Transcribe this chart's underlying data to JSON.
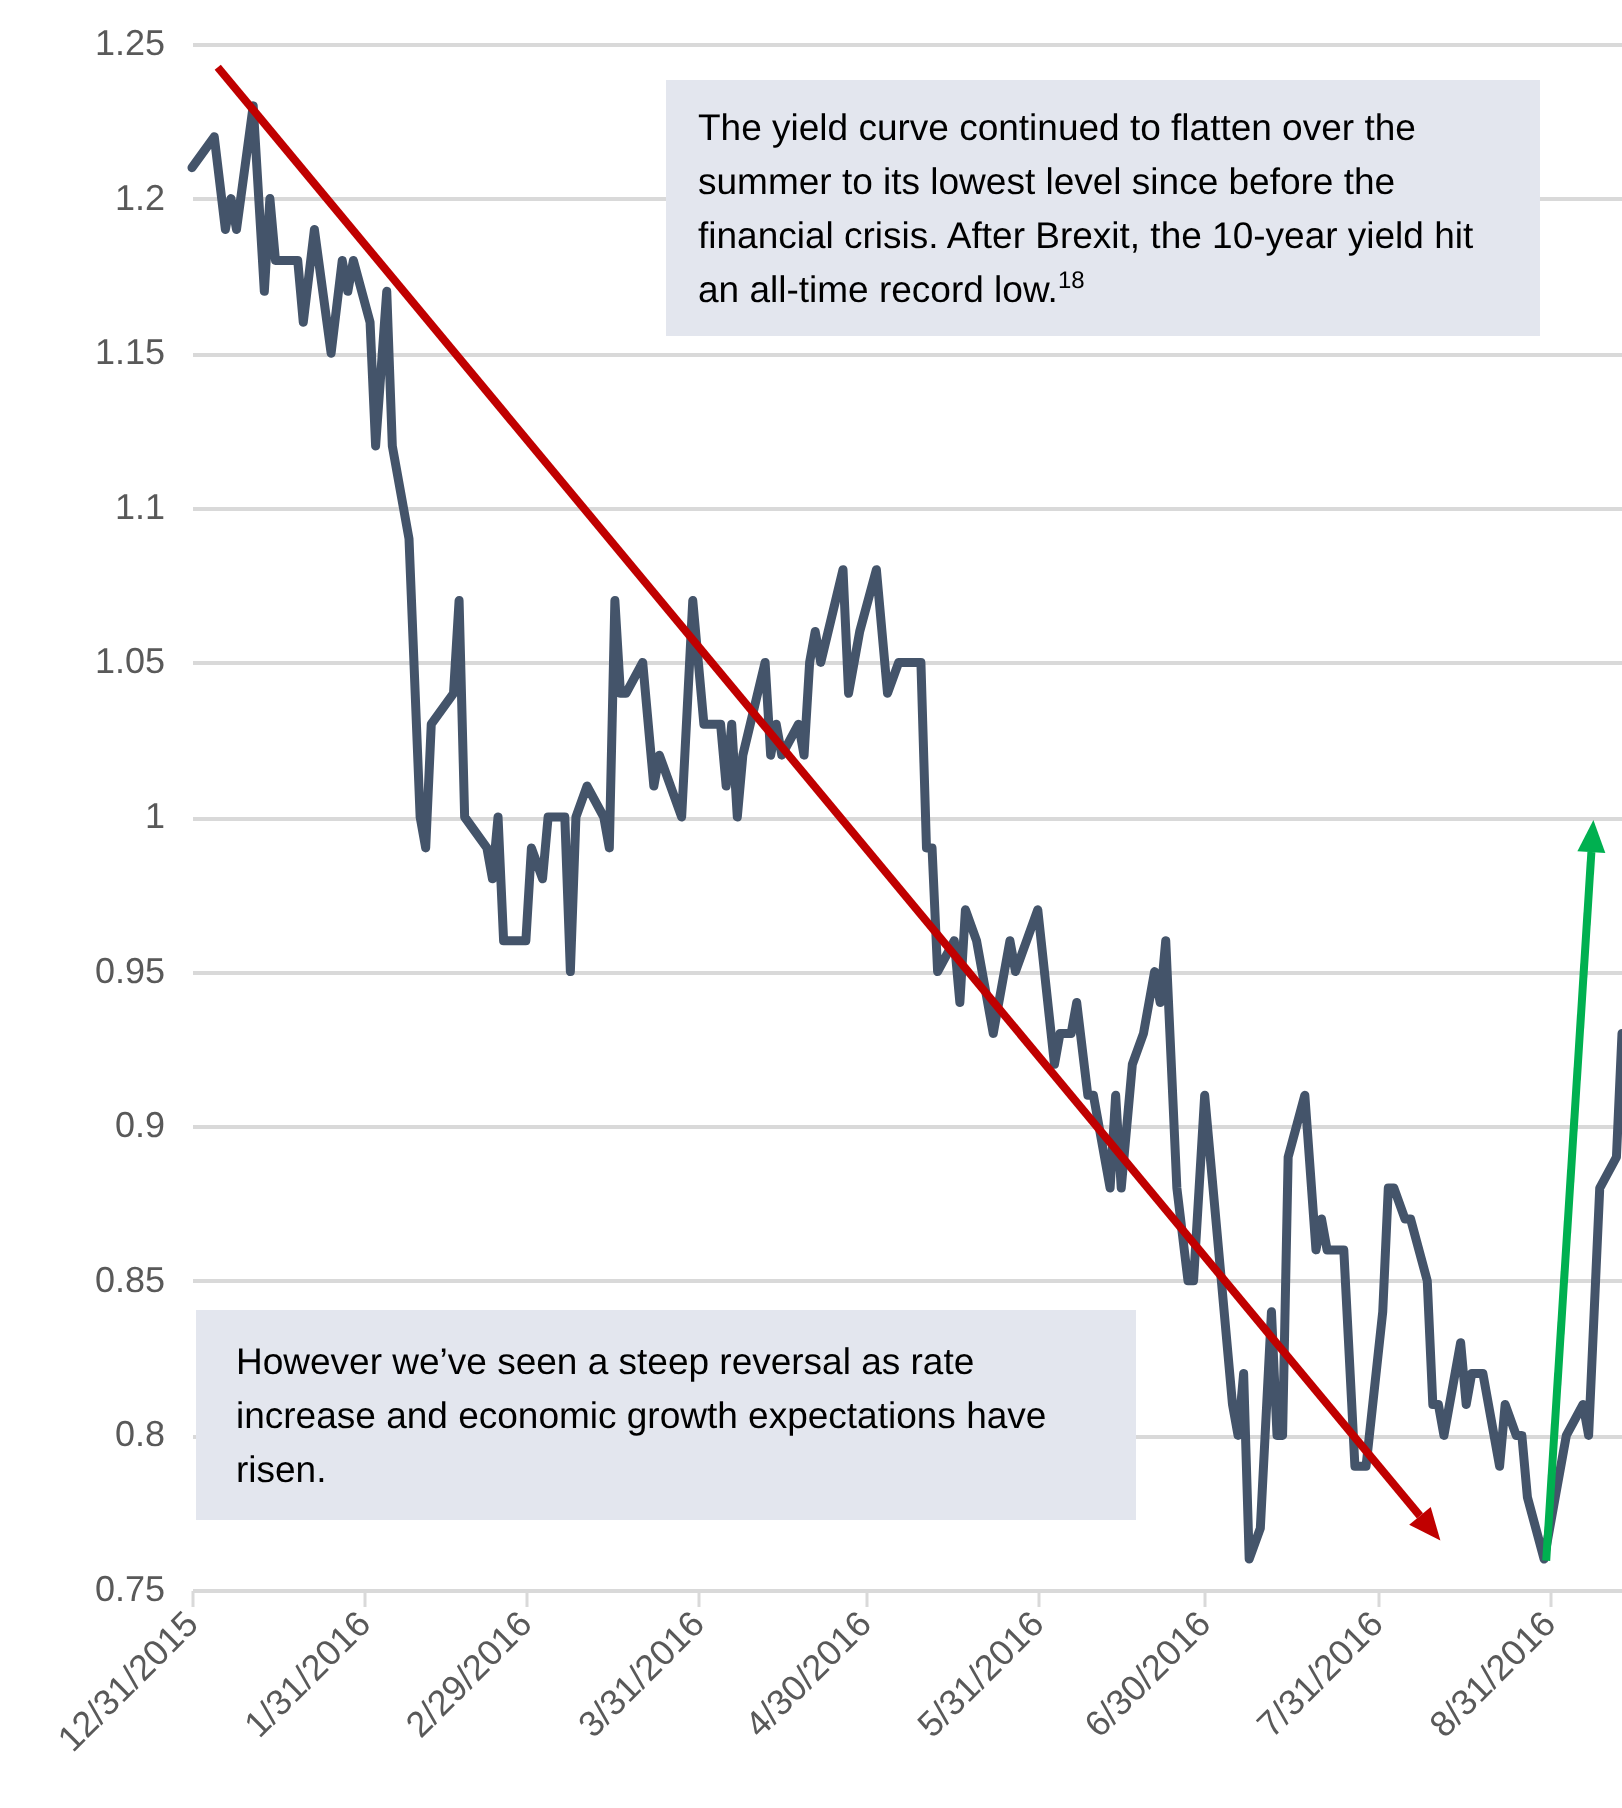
{
  "chart_data": {
    "type": "line",
    "x": [
      "2015-12-31",
      "2016-01-04",
      "2016-01-06",
      "2016-01-07",
      "2016-01-08",
      "2016-01-11",
      "2016-01-13",
      "2016-01-14",
      "2016-01-15",
      "2016-01-19",
      "2016-01-20",
      "2016-01-22",
      "2016-01-25",
      "2016-01-27",
      "2016-01-28",
      "2016-01-29",
      "2016-02-01",
      "2016-02-02",
      "2016-02-04",
      "2016-02-05",
      "2016-02-08",
      "2016-02-10",
      "2016-02-11",
      "2016-02-12",
      "2016-02-16",
      "2016-02-17",
      "2016-02-18",
      "2016-02-22",
      "2016-02-23",
      "2016-02-24",
      "2016-02-25",
      "2016-02-29",
      "2016-03-01",
      "2016-03-03",
      "2016-03-04",
      "2016-03-07",
      "2016-03-08",
      "2016-03-09",
      "2016-03-11",
      "2016-03-14",
      "2016-03-15",
      "2016-03-16",
      "2016-03-17",
      "2016-03-18",
      "2016-03-21",
      "2016-03-23",
      "2016-03-24",
      "2016-03-28",
      "2016-03-30",
      "2016-04-01",
      "2016-04-04",
      "2016-04-05",
      "2016-04-06",
      "2016-04-07",
      "2016-04-08",
      "2016-04-12",
      "2016-04-13",
      "2016-04-14",
      "2016-04-15",
      "2016-04-18",
      "2016-04-19",
      "2016-04-20",
      "2016-04-21",
      "2016-04-22",
      "2016-04-26",
      "2016-04-27",
      "2016-04-29",
      "2016-05-02",
      "2016-05-04",
      "2016-05-06",
      "2016-05-10",
      "2016-05-11",
      "2016-05-12",
      "2016-05-13",
      "2016-05-16",
      "2016-05-17",
      "2016-05-18",
      "2016-05-20",
      "2016-05-23",
      "2016-05-26",
      "2016-05-27",
      "2016-05-31",
      "2016-06-03",
      "2016-06-04",
      "2016-06-06",
      "2016-06-07",
      "2016-06-09",
      "2016-06-10",
      "2016-06-13",
      "2016-06-14",
      "2016-06-15",
      "2016-06-17",
      "2016-06-19",
      "2016-06-21",
      "2016-06-22",
      "2016-06-23",
      "2016-06-25",
      "2016-06-27",
      "2016-06-28",
      "2016-06-30",
      "2016-07-02",
      "2016-07-05",
      "2016-07-06",
      "2016-07-07",
      "2016-07-08",
      "2016-07-10",
      "2016-07-12",
      "2016-07-13",
      "2016-07-14",
      "2016-07-15",
      "2016-07-18",
      "2016-07-20",
      "2016-07-21",
      "2016-07-22",
      "2016-07-25",
      "2016-07-27",
      "2016-07-29",
      "2016-08-01",
      "2016-08-02",
      "2016-08-03",
      "2016-08-05",
      "2016-08-06",
      "2016-08-09",
      "2016-08-10",
      "2016-08-11",
      "2016-08-12",
      "2016-08-15",
      "2016-08-16",
      "2016-08-17",
      "2016-08-19",
      "2016-08-22",
      "2016-08-23",
      "2016-08-25",
      "2016-08-26",
      "2016-08-27",
      "2016-08-30",
      "2016-09-01",
      "2016-09-03",
      "2016-09-06",
      "2016-09-07",
      "2016-09-09",
      "2016-09-12",
      "2016-09-13"
    ],
    "series": [
      {
        "color": "#44546a",
        "values": [
          1.21,
          1.22,
          1.19,
          1.2,
          1.19,
          1.23,
          1.17,
          1.2,
          1.18,
          1.18,
          1.16,
          1.19,
          1.15,
          1.18,
          1.17,
          1.18,
          1.16,
          1.12,
          1.17,
          1.12,
          1.09,
          1.0,
          0.99,
          1.03,
          1.04,
          1.07,
          1.0,
          0.99,
          0.98,
          1.0,
          0.96,
          0.96,
          0.99,
          0.98,
          1.0,
          1.0,
          0.95,
          1.0,
          1.01,
          1.0,
          0.99,
          1.07,
          1.04,
          1.04,
          1.05,
          1.01,
          1.02,
          1.0,
          1.07,
          1.03,
          1.03,
          1.01,
          1.03,
          1.0,
          1.02,
          1.05,
          1.02,
          1.03,
          1.02,
          1.03,
          1.02,
          1.05,
          1.06,
          1.05,
          1.08,
          1.04,
          1.06,
          1.08,
          1.04,
          1.05,
          1.05,
          0.99,
          0.99,
          0.95,
          0.96,
          0.94,
          0.97,
          0.96,
          0.93,
          0.96,
          0.95,
          0.97,
          0.92,
          0.93,
          0.93,
          0.94,
          0.91,
          0.91,
          0.88,
          0.91,
          0.88,
          0.92,
          0.93,
          0.95,
          0.94,
          0.96,
          0.88,
          0.85,
          0.85,
          0.91,
          0.87,
          0.81,
          0.8,
          0.82,
          0.76,
          0.77,
          0.84,
          0.8,
          0.8,
          0.89,
          0.91,
          0.86,
          0.87,
          0.86,
          0.86,
          0.79,
          0.79,
          0.84,
          0.88,
          0.88,
          0.87,
          0.87,
          0.85,
          0.81,
          0.81,
          0.8,
          0.83,
          0.81,
          0.82,
          0.82,
          0.79,
          0.81,
          0.8,
          0.8,
          0.78,
          0.76,
          0.78,
          0.8,
          0.81,
          0.8,
          0.88,
          0.89,
          0.93
        ]
      }
    ],
    "xlim": [
      "2015-12-31",
      "2016-09-13"
    ],
    "xticks": [
      {
        "value": "2015-12-31",
        "label": "12/31/2015"
      },
      {
        "value": "2016-01-31",
        "label": "1/31/2016"
      },
      {
        "value": "2016-02-29",
        "label": "2/29/2016"
      },
      {
        "value": "2016-03-31",
        "label": "3/31/2016"
      },
      {
        "value": "2016-04-30",
        "label": "4/30/2016"
      },
      {
        "value": "2016-05-31",
        "label": "5/31/2016"
      },
      {
        "value": "2016-06-30",
        "label": "6/30/2016"
      },
      {
        "value": "2016-07-31",
        "label": "7/31/2016"
      },
      {
        "value": "2016-08-31",
        "label": "8/31/2016"
      }
    ],
    "ylim": [
      0.75,
      1.25
    ],
    "yticks": [
      0.75,
      0.8,
      0.85,
      0.9,
      0.95,
      1,
      1.05,
      1.1,
      1.15,
      1.2,
      1.25
    ],
    "grid": "y",
    "line_style": "solid",
    "annotations": [
      "The yield curve continued to flatten over the summer to its lowest level since before the financial crisis.  After Brexit, the 10-year yield hit an all-time record low.$^{18}$",
      "However we’ve seen a steep reversal as rate increase and economic growth expectations have risen."
    ]
  }
}
